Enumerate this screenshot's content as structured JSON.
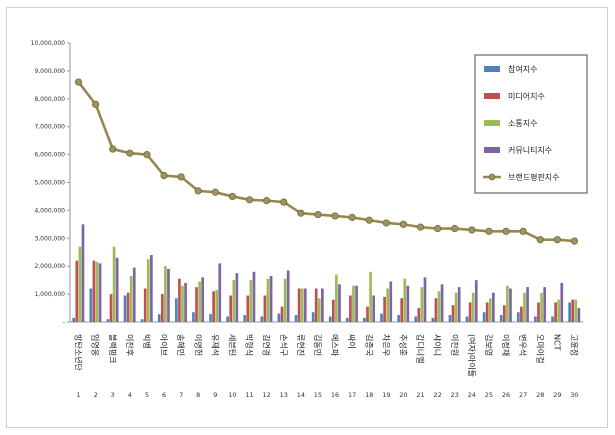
{
  "chart_data": {
    "type": "bar",
    "title": "",
    "xlabel": "",
    "ylabel": "",
    "ylim": [
      0,
      10000000
    ],
    "yticks": [
      "-",
      "1,000,000",
      "2,000,000",
      "3,000,000",
      "4,000,000",
      "5,000,000",
      "6,000,000",
      "7,000,000",
      "8,000,000",
      "9,000,000",
      "10,000,000"
    ],
    "grid": false,
    "legend_position": "right",
    "ranks": [
      1,
      2,
      3,
      4,
      5,
      6,
      7,
      8,
      9,
      10,
      11,
      12,
      13,
      14,
      15,
      16,
      17,
      18,
      19,
      20,
      21,
      22,
      23,
      24,
      25,
      26,
      27,
      28,
      29,
      30
    ],
    "categories": [
      "방탄소년단",
      "임영웅",
      "블랙핑크",
      "이찬후",
      "빅뱅",
      "아이브",
      "송해민",
      "이영헌",
      "유재석",
      "세븐틴",
      "박형식",
      "김연경",
      "손석구",
      "류현진",
      "김동민",
      "에스파",
      "싸이",
      "김종국",
      "차은우",
      "추성훈",
      "갑디니엘",
      "샤이니",
      "이찬원",
      "(여자)아이들",
      "김보영",
      "이정재",
      "변우석",
      "오마이걸",
      "NCT",
      "고윤정"
    ],
    "series": [
      {
        "name": "참여지수",
        "color": "#4f81bd",
        "values": [
          150000,
          1200000,
          100000,
          950000,
          100000,
          280000,
          850000,
          350000,
          280000,
          200000,
          250000,
          200000,
          300000,
          250000,
          350000,
          200000,
          150000,
          150000,
          300000,
          250000,
          200000,
          150000,
          250000,
          200000,
          350000,
          250000,
          350000,
          200000,
          200000,
          700000
        ]
      },
      {
        "name": "미디어지수",
        "color": "#c0504d",
        "values": [
          2200000,
          2200000,
          1000000,
          1050000,
          1200000,
          1000000,
          1550000,
          1250000,
          1100000,
          950000,
          950000,
          950000,
          550000,
          1200000,
          1200000,
          800000,
          950000,
          550000,
          900000,
          850000,
          500000,
          850000,
          600000,
          700000,
          700000,
          600000,
          550000,
          700000,
          700000,
          800000
        ]
      },
      {
        "name": "소통지수",
        "color": "#9bbb59",
        "values": [
          2700000,
          2150000,
          2700000,
          1650000,
          2250000,
          2000000,
          1300000,
          1450000,
          1150000,
          1500000,
          1500000,
          1550000,
          1550000,
          1200000,
          850000,
          1700000,
          1300000,
          1800000,
          1200000,
          1550000,
          1250000,
          1100000,
          1050000,
          1050000,
          850000,
          1300000,
          1050000,
          1050000,
          800000,
          800000
        ]
      },
      {
        "name": "커뮤니티지수",
        "color": "#8064a2",
        "values": [
          3500000,
          2100000,
          2300000,
          1950000,
          2400000,
          1900000,
          1400000,
          1600000,
          2100000,
          1750000,
          1800000,
          1650000,
          1850000,
          1200000,
          1200000,
          1350000,
          1300000,
          950000,
          1450000,
          1300000,
          1600000,
          1350000,
          1250000,
          1500000,
          1050000,
          1200000,
          1250000,
          1250000,
          1400000,
          500000
        ]
      },
      {
        "name": "브랜드평판지수",
        "color": "#938953",
        "type": "line",
        "values": [
          8600000,
          7800000,
          6200000,
          6050000,
          6000000,
          5250000,
          5200000,
          4700000,
          4650000,
          4500000,
          4380000,
          4350000,
          4300000,
          3900000,
          3850000,
          3800000,
          3750000,
          3650000,
          3550000,
          3500000,
          3400000,
          3350000,
          3350000,
          3300000,
          3250000,
          3250000,
          3250000,
          2950000,
          2950000,
          2900000
        ]
      }
    ]
  }
}
